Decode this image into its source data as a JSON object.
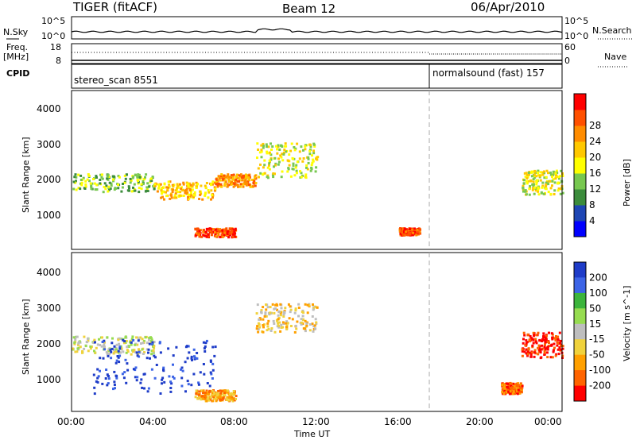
{
  "header": {
    "radar": "TIGER (fitACF)",
    "beam": "Beam 12",
    "date": "06/Apr/2010"
  },
  "summary": {
    "nsky_label": "N.Sky",
    "nsky_ticks": [
      "10^5",
      "10^0"
    ],
    "nsearch_label": "N.Search",
    "nsearch_ticks": [
      "10^5",
      "10^0"
    ],
    "freq_label": "Freq.",
    "freq_unit": "[MHz]",
    "freq_ticks": [
      "18",
      "8"
    ],
    "nave_label": "Nave",
    "nave_ticks": [
      "60",
      "0"
    ],
    "cpid_label": "CPID",
    "modes": [
      {
        "name": "stereo_scan 8551",
        "start_hour": 0
      },
      {
        "name": "normalsound (fast) 157",
        "start_hour": 18
      }
    ]
  },
  "chart_data": [
    {
      "type": "heatmap",
      "panel": "power",
      "xlabel": "",
      "ylabel": "Slant Range [km]",
      "xlim": [
        0,
        24
      ],
      "ylim": [
        180,
        4600
      ],
      "y_ticks": [
        "1000",
        "2000",
        "3000",
        "4000"
      ],
      "colorbar": {
        "label": "Power [dB]",
        "ticks": [
          "4",
          "8",
          "12",
          "16",
          "20",
          "24",
          "28"
        ],
        "colors": [
          "#0000ff",
          "#1e46b4",
          "#3c8c3c",
          "#78c850",
          "#ffff00",
          "#ffc800",
          "#ff8c00",
          "#ff5000",
          "#ff0000"
        ]
      },
      "scatter_regions": [
        {
          "x": [
            0,
            4
          ],
          "y": [
            1800,
            2300
          ],
          "level": 3
        },
        {
          "x": [
            4,
            7
          ],
          "y": [
            1600,
            2100
          ],
          "level": 5
        },
        {
          "x": [
            7,
            9
          ],
          "y": [
            1950,
            2300
          ],
          "level": 6
        },
        {
          "x": [
            9,
            12
          ],
          "y": [
            2200,
            3200
          ],
          "level": 4
        },
        {
          "x": [
            6,
            8
          ],
          "y": [
            550,
            800
          ],
          "level": 7
        },
        {
          "x": [
            16,
            17
          ],
          "y": [
            600,
            800
          ],
          "level": 7
        },
        {
          "x": [
            22,
            24
          ],
          "y": [
            1700,
            2400
          ],
          "level": 4
        }
      ]
    },
    {
      "type": "heatmap",
      "panel": "velocity",
      "xlabel": "Time UT",
      "ylabel": "Slant Range [km]",
      "xlim": [
        0,
        24
      ],
      "ylim": [
        180,
        4600
      ],
      "x_ticks": [
        "00:00",
        "04:00",
        "08:00",
        "12:00",
        "16:00",
        "20:00",
        "00:00"
      ],
      "y_ticks": [
        "1000",
        "2000",
        "3000",
        "4000"
      ],
      "colorbar": {
        "label": "Velocity [m s^-1]",
        "ticks": [
          "200",
          "100",
          "50",
          "15",
          "-15",
          "-50",
          "-100",
          "-200"
        ],
        "colors": [
          "#1e3cc8",
          "#3c64e6",
          "#3cb43c",
          "#96dc50",
          "#bebebe",
          "#f0d23c",
          "#ffa000",
          "#ff6400",
          "#ff0000"
        ]
      },
      "scatter_regions": [
        {
          "x": [
            0,
            4
          ],
          "y": [
            1800,
            2300
          ],
          "level": 4
        },
        {
          "x": [
            1,
            7
          ],
          "y": [
            700,
            2200
          ],
          "level": 0
        },
        {
          "x": [
            6,
            8
          ],
          "y": [
            500,
            800
          ],
          "level": 6
        },
        {
          "x": [
            9,
            12
          ],
          "y": [
            2400,
            3200
          ],
          "level": 5
        },
        {
          "x": [
            22,
            24
          ],
          "y": [
            1700,
            2400
          ],
          "level": 8
        },
        {
          "x": [
            21,
            22
          ],
          "y": [
            700,
            1000
          ],
          "level": 7
        }
      ]
    }
  ]
}
